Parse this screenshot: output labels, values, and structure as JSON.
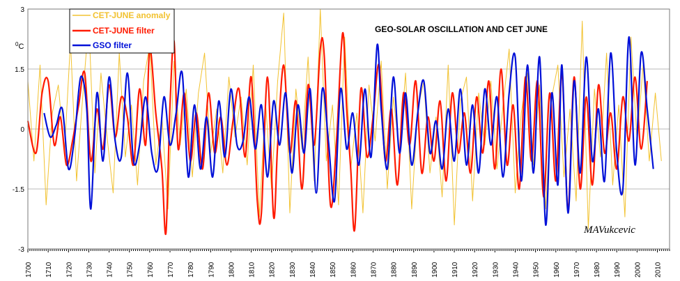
{
  "chart_data": {
    "type": "line",
    "title": "GEO-SOLAR OSCILLATION AND CET JUNE",
    "ylabel": "0C",
    "ylabel_sup": "0",
    "ylabel_main": "C",
    "xlabel": "",
    "xlim": [
      1700,
      2016
    ],
    "ylim": [
      -3,
      3
    ],
    "yticks": [
      -3,
      -1.5,
      0,
      1.5,
      3
    ],
    "ytick_labels": [
      "-3",
      "-1.5",
      "0",
      "1.5",
      "3"
    ],
    "xticks": [
      1700,
      1710,
      1720,
      1730,
      1740,
      1750,
      1760,
      1770,
      1780,
      1790,
      1800,
      1810,
      1820,
      1830,
      1840,
      1850,
      1860,
      1870,
      1880,
      1890,
      1900,
      1910,
      1920,
      1930,
      1940,
      1950,
      1960,
      1970,
      1980,
      1990,
      2000,
      2010
    ],
    "grid": "horizontal",
    "legend_position": "top-left",
    "signature": "MAVukcevic",
    "colors": {
      "anomaly": "#f2c230",
      "cet_filter": "#ff1a00",
      "gso_filter": "#0010d8",
      "grid": "#b8b8b8"
    },
    "series": [
      {
        "name": "CET-JUNE anomaly",
        "color": "#f2c230",
        "x": [
          1700,
          1703,
          1706,
          1709,
          1712,
          1715,
          1718,
          1721,
          1724,
          1727,
          1730,
          1733,
          1736,
          1739,
          1742,
          1745,
          1748,
          1751,
          1754,
          1757,
          1760,
          1763,
          1766,
          1769,
          1772,
          1775,
          1778,
          1781,
          1784,
          1787,
          1790,
          1793,
          1796,
          1799,
          1802,
          1805,
          1808,
          1811,
          1814,
          1817,
          1820,
          1823,
          1826,
          1829,
          1832,
          1835,
          1838,
          1841,
          1844,
          1847,
          1850,
          1853,
          1856,
          1859,
          1862,
          1865,
          1868,
          1871,
          1874,
          1877,
          1880,
          1883,
          1886,
          1889,
          1892,
          1895,
          1898,
          1901,
          1904,
          1907,
          1910,
          1913,
          1916,
          1919,
          1922,
          1925,
          1928,
          1931,
          1934,
          1937,
          1940,
          1943,
          1946,
          1949,
          1952,
          1955,
          1958,
          1961,
          1964,
          1967,
          1970,
          1973,
          1976,
          1979,
          1982,
          1985,
          1988,
          1991,
          1994,
          1997,
          2000,
          2003,
          2006,
          2009,
          2012
        ],
        "y": [
          1.2,
          -0.8,
          1.6,
          -1.9,
          0.4,
          1.1,
          -0.6,
          2.2,
          -1.3,
          0.8,
          2.7,
          -1.1,
          1.4,
          -0.2,
          -1.6,
          1.9,
          -0.7,
          0.6,
          -1.4,
          1.2,
          2.1,
          -0.9,
          0.3,
          -2.0,
          1.7,
          -0.4,
          1.0,
          -1.2,
          0.9,
          1.9,
          -0.6,
          0.5,
          -1.1,
          1.3,
          -0.2,
          0.8,
          -0.9,
          1.6,
          -2.2,
          0.7,
          -1.5,
          1.2,
          2.9,
          -2.1,
          1.0,
          -0.5,
          1.8,
          -1.3,
          3.0,
          -0.8,
          0.6,
          -1.9,
          2.3,
          -1.0,
          0.4,
          -2.1,
          1.1,
          -0.3,
          1.7,
          -1.5,
          0.8,
          -0.6,
          1.4,
          -2.0,
          0.5,
          1.2,
          -1.1,
          0.3,
          -1.7,
          1.6,
          -2.4,
          0.7,
          1.3,
          -1.8,
          0.9,
          -0.4,
          1.2,
          -1.0,
          0.6,
          2.0,
          -1.6,
          0.4,
          1.4,
          -0.9,
          1.1,
          -2.0,
          0.8,
          1.6,
          -1.2,
          0.5,
          -1.8,
          2.7,
          -2.5,
          1.0,
          -0.7,
          1.9,
          -1.4,
          0.6,
          -2.2,
          2.3,
          -0.3,
          1.6,
          -0.8,
          0.9,
          -0.8
        ]
      },
      {
        "name": "CET-JUNE filter",
        "color": "#ff1a00",
        "x": [
          1700,
          1704,
          1707,
          1710,
          1713,
          1716,
          1719,
          1722,
          1725,
          1728,
          1731,
          1734,
          1737,
          1740,
          1743,
          1746,
          1749,
          1752,
          1755,
          1758,
          1760,
          1763,
          1766,
          1768,
          1770,
          1772,
          1774,
          1777,
          1780,
          1783,
          1786,
          1789,
          1792,
          1795,
          1798,
          1801,
          1804,
          1807,
          1810,
          1813,
          1815,
          1818,
          1821,
          1823,
          1826,
          1829,
          1832,
          1835,
          1838,
          1841,
          1844,
          1846,
          1849,
          1852,
          1855,
          1857,
          1859,
          1861,
          1864,
          1867,
          1870,
          1873,
          1876,
          1879,
          1882,
          1885,
          1888,
          1891,
          1894,
          1897,
          1900,
          1903,
          1906,
          1909,
          1912,
          1915,
          1918,
          1921,
          1924,
          1927,
          1930,
          1933,
          1936,
          1939,
          1942,
          1945,
          1948,
          1951,
          1954,
          1957,
          1960,
          1963,
          1966,
          1969,
          1972,
          1975,
          1978,
          1981,
          1984,
          1987,
          1990,
          1993,
          1996,
          1999,
          2002,
          2005
        ],
        "y": [
          0.2,
          -0.6,
          0.9,
          1.2,
          -0.4,
          0.3,
          -0.9,
          -0.3,
          0.6,
          1.4,
          -0.8,
          0.5,
          -0.5,
          1.1,
          -0.2,
          0.8,
          0.3,
          -0.9,
          1.0,
          -0.4,
          2.0,
          0.4,
          -1.0,
          -2.6,
          0.6,
          2.2,
          -0.5,
          0.9,
          -0.8,
          0.4,
          -1.0,
          0.9,
          -0.6,
          0.3,
          -0.9,
          0.2,
          1.0,
          -0.7,
          1.3,
          -1.8,
          -2.1,
          1.3,
          -2.2,
          -0.4,
          1.6,
          -0.6,
          0.7,
          -1.5,
          1.1,
          -0.4,
          2.0,
          1.8,
          -1.9,
          -0.3,
          2.4,
          0.5,
          -1.0,
          -2.5,
          1.0,
          -0.7,
          0.3,
          1.6,
          -0.8,
          0.5,
          -1.4,
          0.9,
          -0.4,
          1.2,
          -1.1,
          0.3,
          -0.8,
          0.7,
          -1.3,
          0.9,
          -0.6,
          0.4,
          -1.1,
          0.8,
          -0.6,
          1.2,
          -1.0,
          1.5,
          -0.9,
          0.6,
          -1.5,
          1.3,
          -0.8,
          1.2,
          -1.7,
          0.9,
          -1.3,
          1.4,
          -2.0,
          1.3,
          -1.5,
          0.8,
          -1.4,
          1.1,
          -0.6,
          0.4,
          -1.0,
          0.8,
          -0.3,
          1.3,
          -0.5,
          1.2
        ]
      },
      {
        "name": "GSO filter",
        "color": "#0010d8",
        "x": [
          1708,
          1711,
          1714,
          1717,
          1720,
          1723,
          1726,
          1729,
          1731,
          1734,
          1737,
          1740,
          1743,
          1746,
          1749,
          1752,
          1755,
          1758,
          1761,
          1764,
          1767,
          1770,
          1773,
          1776,
          1779,
          1782,
          1785,
          1788,
          1791,
          1794,
          1797,
          1800,
          1803,
          1806,
          1809,
          1812,
          1815,
          1818,
          1821,
          1824,
          1827,
          1830,
          1833,
          1836,
          1839,
          1842,
          1845,
          1848,
          1851,
          1854,
          1857,
          1860,
          1863,
          1866,
          1869,
          1872,
          1874,
          1877,
          1880,
          1883,
          1886,
          1889,
          1892,
          1895,
          1898,
          1901,
          1904,
          1907,
          1910,
          1913,
          1916,
          1919,
          1922,
          1925,
          1928,
          1931,
          1934,
          1937,
          1940,
          1943,
          1946,
          1949,
          1952,
          1955,
          1958,
          1961,
          1963,
          1966,
          1969,
          1972,
          1975,
          1978,
          1981,
          1984,
          1987,
          1990,
          1993,
          1996,
          1999,
          2002,
          2005,
          2008
        ],
        "y": [
          0.4,
          -0.2,
          0.1,
          0.5,
          -1.0,
          -0.2,
          1.3,
          0.5,
          -2.0,
          0.9,
          -0.8,
          1.3,
          -0.3,
          -0.7,
          1.4,
          -0.8,
          -0.4,
          0.8,
          -0.6,
          -1.0,
          0.8,
          -0.4,
          0.4,
          1.4,
          -1.2,
          0.6,
          -1.0,
          0.3,
          -1.2,
          0.7,
          -0.7,
          1.0,
          -0.4,
          -0.3,
          0.8,
          -0.5,
          0.6,
          -1.2,
          0.7,
          -0.4,
          0.9,
          -1.1,
          0.6,
          -0.6,
          1.0,
          -1.6,
          1.0,
          -0.3,
          -1.8,
          1.0,
          -0.5,
          0.4,
          -0.9,
          1.0,
          -0.7,
          2.1,
          0.5,
          -1.0,
          1.3,
          -0.6,
          0.9,
          -0.9,
          0.4,
          1.2,
          -0.6,
          0.2,
          -1.0,
          0.5,
          -0.8,
          1.0,
          -0.9,
          0.6,
          -1.1,
          1.0,
          -0.4,
          0.8,
          -1.2,
          0.9,
          1.8,
          -1.3,
          1.6,
          -1.1,
          1.8,
          -2.4,
          0.9,
          -1.4,
          1.6,
          -2.1,
          1.2,
          -1.1,
          1.8,
          -0.8,
          0.5,
          -1.3,
          1.9,
          -0.6,
          -1.5,
          2.3,
          -0.9,
          1.9,
          0.5,
          -1.0
        ]
      }
    ]
  }
}
